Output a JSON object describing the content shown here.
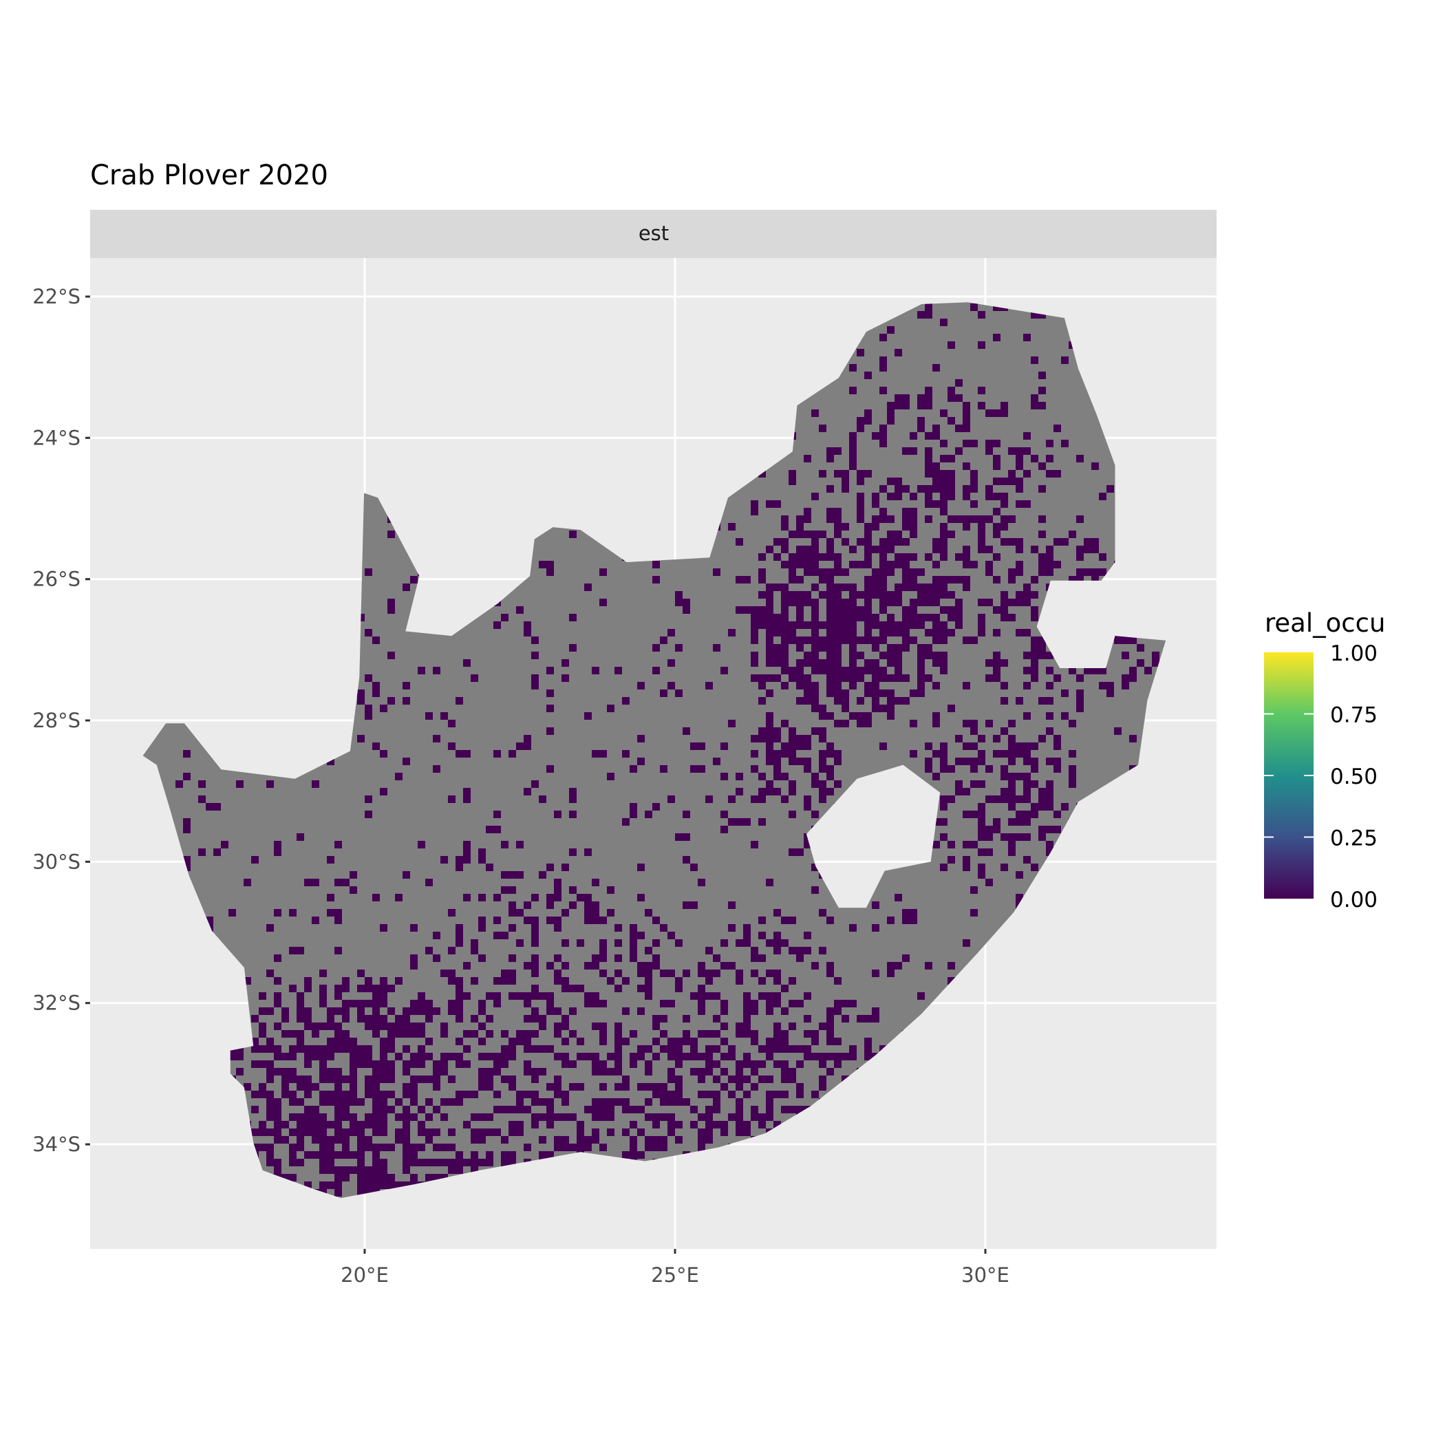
{
  "chart_data": {
    "type": "heatmap",
    "title": "Crab Plover 2020",
    "facet_label": "est",
    "xlabel": "",
    "ylabel": "",
    "x_ticks": [
      "20°E",
      "25°E",
      "30°E"
    ],
    "x_tick_values": [
      20,
      25,
      30
    ],
    "y_ticks": [
      "22°S",
      "24°S",
      "26°S",
      "28°S",
      "30°S",
      "32°S",
      "34°S"
    ],
    "y_tick_values": [
      -22,
      -24,
      -26,
      -28,
      -30,
      -32,
      -34
    ],
    "xlim": [
      15.6,
      33.8
    ],
    "ylim": [
      -35.4,
      -21.4
    ],
    "grid": true,
    "legend": {
      "title": "real_occu",
      "placement": "right",
      "scale": "viridis",
      "range": [
        0,
        1
      ],
      "ticks": [
        "1.00",
        "0.75",
        "0.50",
        "0.25",
        "0.00"
      ],
      "tick_values": [
        1,
        0.75,
        0.5,
        0.25,
        0
      ]
    },
    "values_observed": [
      0
    ],
    "na_color": "#808080",
    "value_zero_color": "#440154",
    "panel_background": "#EBEBEB",
    "strip_background": "#D9D9D9"
  }
}
